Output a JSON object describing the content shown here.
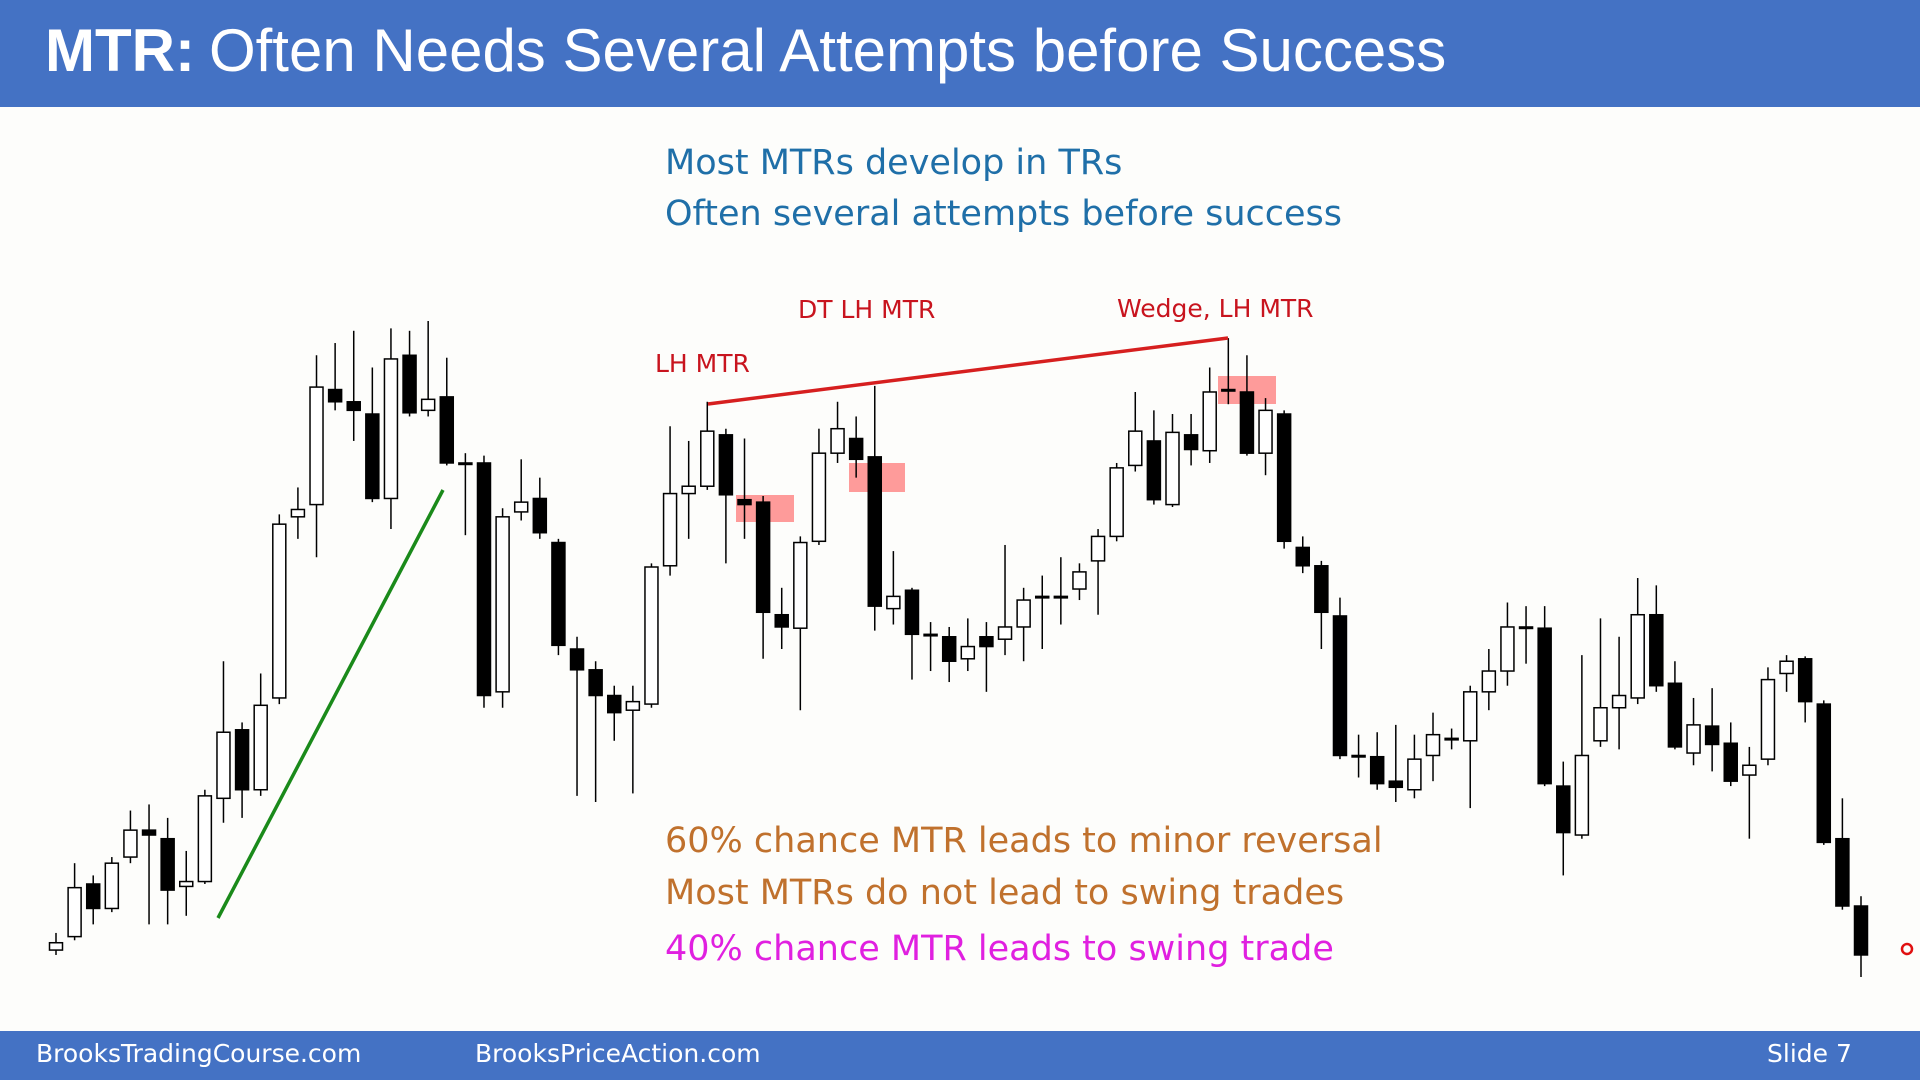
{
  "header": {
    "title_bold": "MTR:",
    "title_rest": "Often Needs Several Attempts before Success"
  },
  "notes": {
    "top": [
      "Most MTRs develop in TRs",
      "Often several attempts before success"
    ],
    "bottom": [
      "60% chance MTR leads to minor reversal",
      "Most MTRs do not lead to swing trades"
    ],
    "highlight": "40% chance MTR leads to swing trade"
  },
  "chart_data": {
    "type": "candlestick",
    "annotations": [
      "LH MTR",
      "DT LH MTR",
      "Wedge, LH MTR"
    ],
    "up_color": "#ffffff",
    "down_color": "#000000",
    "open": [
      106,
      117,
      160,
      140,
      182,
      204,
      197,
      158,
      162,
      230,
      286,
      237,
      312,
      460,
      470,
      564,
      554,
      544,
      475,
      592,
      547,
      558,
      504,
      504,
      317,
      464,
      475,
      439,
      352,
      335,
      314,
      302,
      307,
      420,
      479,
      485,
      527,
      474,
      472,
      380,
      369,
      440,
      512,
      524,
      509,
      385,
      400,
      364,
      362,
      344,
      362,
      360,
      370,
      395,
      395,
      401,
      424,
      444,
      502,
      522,
      470,
      527,
      514,
      564,
      562,
      512,
      544,
      435,
      420,
      379,
      265,
      264,
      244,
      237,
      265,
      279,
      277,
      317,
      334,
      370,
      369,
      240,
      200,
      277,
      304,
      312,
      380,
      324,
      267,
      289,
      275,
      249,
      262,
      332,
      344,
      307,
      197,
      142
    ],
    "high": [
      120,
      177,
      167,
      182,
      220,
      225,
      214,
      187,
      237,
      342,
      292,
      332,
      462,
      484,
      592,
      602,
      612,
      582,
      614,
      612,
      620,
      590,
      512,
      510,
      467,
      507,
      492,
      442,
      362,
      342,
      322,
      322,
      422,
      534,
      522,
      554,
      532,
      524,
      477,
      402,
      444,
      532,
      554,
      542,
      567,
      432,
      402,
      374,
      370,
      377,
      374,
      437,
      402,
      412,
      427,
      422,
      450,
      504,
      562,
      547,
      544,
      544,
      582,
      606,
      592,
      557,
      547,
      444,
      424,
      394,
      282,
      284,
      290,
      282,
      300,
      287,
      322,
      352,
      390,
      387,
      387,
      260,
      347,
      377,
      362,
      410,
      404,
      342,
      312,
      320,
      292,
      272,
      337,
      347,
      346,
      310,
      230,
      150
    ],
    "low": [
      102,
      114,
      127,
      137,
      177,
      127,
      127,
      134,
      160,
      210,
      214,
      232,
      307,
      442,
      427,
      547,
      522,
      472,
      450,
      542,
      542,
      502,
      445,
      304,
      304,
      457,
      442,
      347,
      232,
      227,
      277,
      234,
      304,
      412,
      442,
      482,
      422,
      442,
      344,
      352,
      302,
      437,
      504,
      492,
      367,
      372,
      327,
      334,
      325,
      334,
      317,
      347,
      342,
      352,
      372,
      392,
      380,
      440,
      497,
      470,
      468,
      502,
      504,
      552,
      510,
      494,
      434,
      414,
      352,
      262,
      247,
      237,
      227,
      230,
      244,
      270,
      222,
      302,
      322,
      340,
      240,
      167,
      197,
      272,
      270,
      307,
      317,
      270,
      257,
      252,
      240,
      197,
      257,
      317,
      292,
      192,
      139,
      84
    ],
    "close": [
      112,
      157,
      140,
      177,
      204,
      200,
      155,
      162,
      232,
      284,
      237,
      306,
      454,
      466,
      566,
      554,
      547,
      475,
      589,
      545,
      556,
      504,
      504,
      314,
      460,
      472,
      447,
      355,
      335,
      314,
      300,
      309,
      419,
      479,
      485,
      530,
      478,
      470,
      382,
      370,
      439,
      512,
      532,
      507,
      387,
      395,
      364,
      364,
      342,
      354,
      354,
      370,
      392,
      395,
      395,
      415,
      444,
      500,
      530,
      474,
      529,
      515,
      562,
      564,
      512,
      547,
      440,
      420,
      382,
      265,
      265,
      242,
      239,
      262,
      282,
      279,
      317,
      334,
      370,
      370,
      242,
      202,
      265,
      304,
      314,
      380,
      322,
      272,
      290,
      274,
      244,
      257,
      327,
      342,
      309,
      194,
      142,
      102
    ]
  },
  "footer": {
    "left": "BrooksTradingCourse.com",
    "middle": "BrooksPriceAction.com",
    "right": "Slide 7"
  }
}
